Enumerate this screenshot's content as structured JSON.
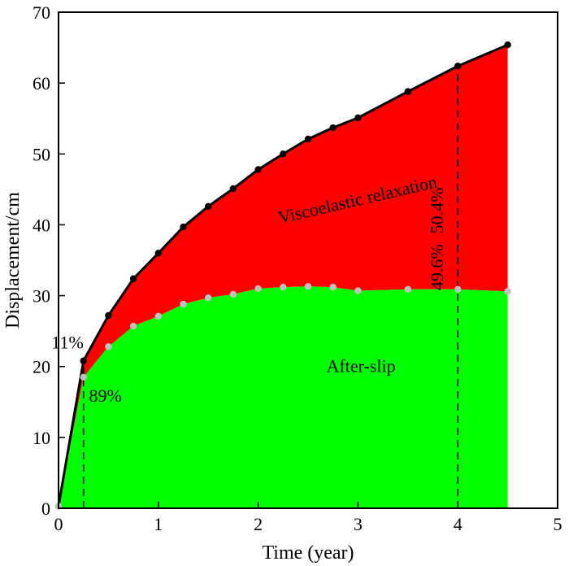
{
  "chart_data": {
    "type": "area",
    "xlabel": "Time (year)",
    "ylabel": "Displacement/cm",
    "xlim": [
      0,
      5
    ],
    "ylim": [
      0,
      70
    ],
    "x_ticks": [
      "0",
      "1",
      "2",
      "3",
      "4",
      "5"
    ],
    "y_ticks": [
      "0",
      "10",
      "20",
      "30",
      "40",
      "50",
      "60",
      "70"
    ],
    "grid": false,
    "series": [
      {
        "name": "Viscoelastic relaxation",
        "color": "#ff0000",
        "marker_color": "#000000",
        "x": [
          0,
          0.25,
          0.5,
          0.75,
          1.0,
          1.25,
          1.5,
          1.75,
          2.0,
          2.25,
          2.5,
          2.75,
          3.0,
          3.5,
          4.0,
          4.5
        ],
        "y": [
          0.3,
          20.8,
          27.2,
          32.4,
          36.0,
          39.7,
          42.6,
          45.1,
          47.8,
          50.0,
          52.1,
          53.7,
          55.1,
          58.8,
          62.4,
          65.4
        ]
      },
      {
        "name": "After-slip",
        "color": "#00ff00",
        "marker_color": "#c0c0c0",
        "x": [
          0,
          0.25,
          0.5,
          0.75,
          1.0,
          1.25,
          1.5,
          1.75,
          2.0,
          2.25,
          2.5,
          2.75,
          3.0,
          3.5,
          4.0,
          4.5
        ],
        "y": [
          0.3,
          18.5,
          22.8,
          25.7,
          27.1,
          28.8,
          29.7,
          30.2,
          31.0,
          31.2,
          31.3,
          31.2,
          30.7,
          30.9,
          30.9,
          30.6
        ]
      }
    ],
    "vlines": [
      {
        "x": 0.25,
        "style": "dashed"
      },
      {
        "x": 4.0,
        "style": "dashed"
      }
    ],
    "annotations": [
      {
        "text": "11%",
        "x": 0.09,
        "y": 23.1,
        "rotation": 0,
        "anchor": "middle"
      },
      {
        "text": "89%",
        "x": 0.47,
        "y": 15.6,
        "rotation": 0,
        "anchor": "middle"
      },
      {
        "text": "49.6%",
        "x": 3.81,
        "y": 34.0,
        "rotation": -90,
        "anchor": "middle"
      },
      {
        "text": "50.4%",
        "x": 3.81,
        "y": 42.0,
        "rotation": -90,
        "anchor": "middle"
      },
      {
        "text": "Viscoelastic relaxation",
        "x": 3.0,
        "y": 43.3,
        "rotation": -13,
        "anchor": "middle"
      },
      {
        "text": "After-slip",
        "x": 3.03,
        "y": 19.8,
        "rotation": 0,
        "anchor": "middle"
      }
    ]
  }
}
